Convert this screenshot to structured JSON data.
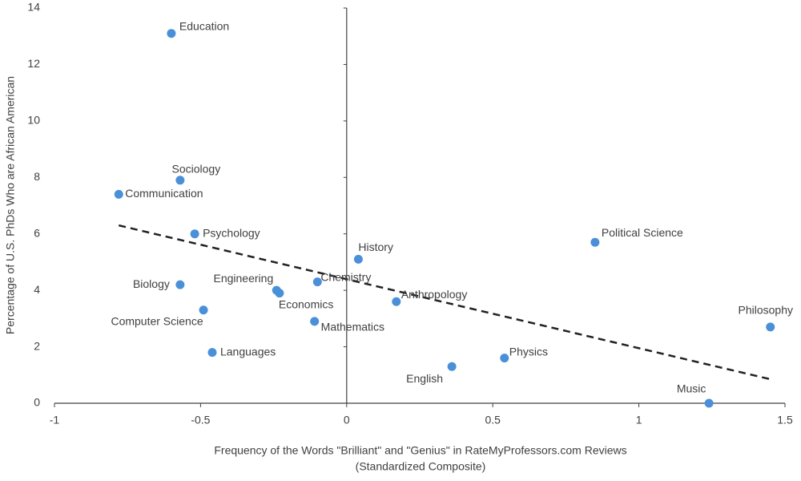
{
  "chart_data": {
    "type": "scatter",
    "x_label": [
      "Frequency of the Words \"Brilliant\" and \"Genius\" in RateMyProfessors.com Reviews",
      "(Standardized Composite)"
    ],
    "y_label": "Percentage of U.S. PhDs Who are African American",
    "labels": [
      "Education",
      "Sociology",
      "Communication",
      "Psychology",
      "History",
      "Political Science",
      "Biology",
      "Engineering",
      "Economics",
      "Chemistry",
      "Anthropology",
      "Computer Science",
      "Mathematics",
      "Philosophy",
      "Languages",
      "Physics",
      "English",
      "Music"
    ],
    "x": [
      -0.6,
      -0.57,
      -0.78,
      -0.52,
      0.04,
      0.85,
      -0.57,
      -0.24,
      -0.23,
      -0.1,
      0.17,
      -0.49,
      -0.11,
      1.45,
      -0.46,
      0.54,
      0.36,
      1.24
    ],
    "y": [
      13.1,
      7.9,
      7.4,
      6.0,
      5.1,
      5.7,
      4.2,
      4.0,
      3.9,
      4.3,
      3.6,
      3.3,
      2.9,
      2.7,
      1.8,
      1.6,
      1.3,
      0
    ],
    "color": "#4a90d9",
    "trendline": {
      "x": [
        -0.78,
        1.45
      ],
      "y": [
        6.3,
        0.85
      ]
    },
    "xlim": [
      -1,
      1.5
    ],
    "xticks": [
      -1,
      -0.5,
      0,
      0.5,
      1,
      1.5
    ],
    "ylim": [
      0,
      14
    ],
    "yticks": [
      0,
      2,
      4,
      6,
      8,
      10,
      12,
      14
    ]
  }
}
